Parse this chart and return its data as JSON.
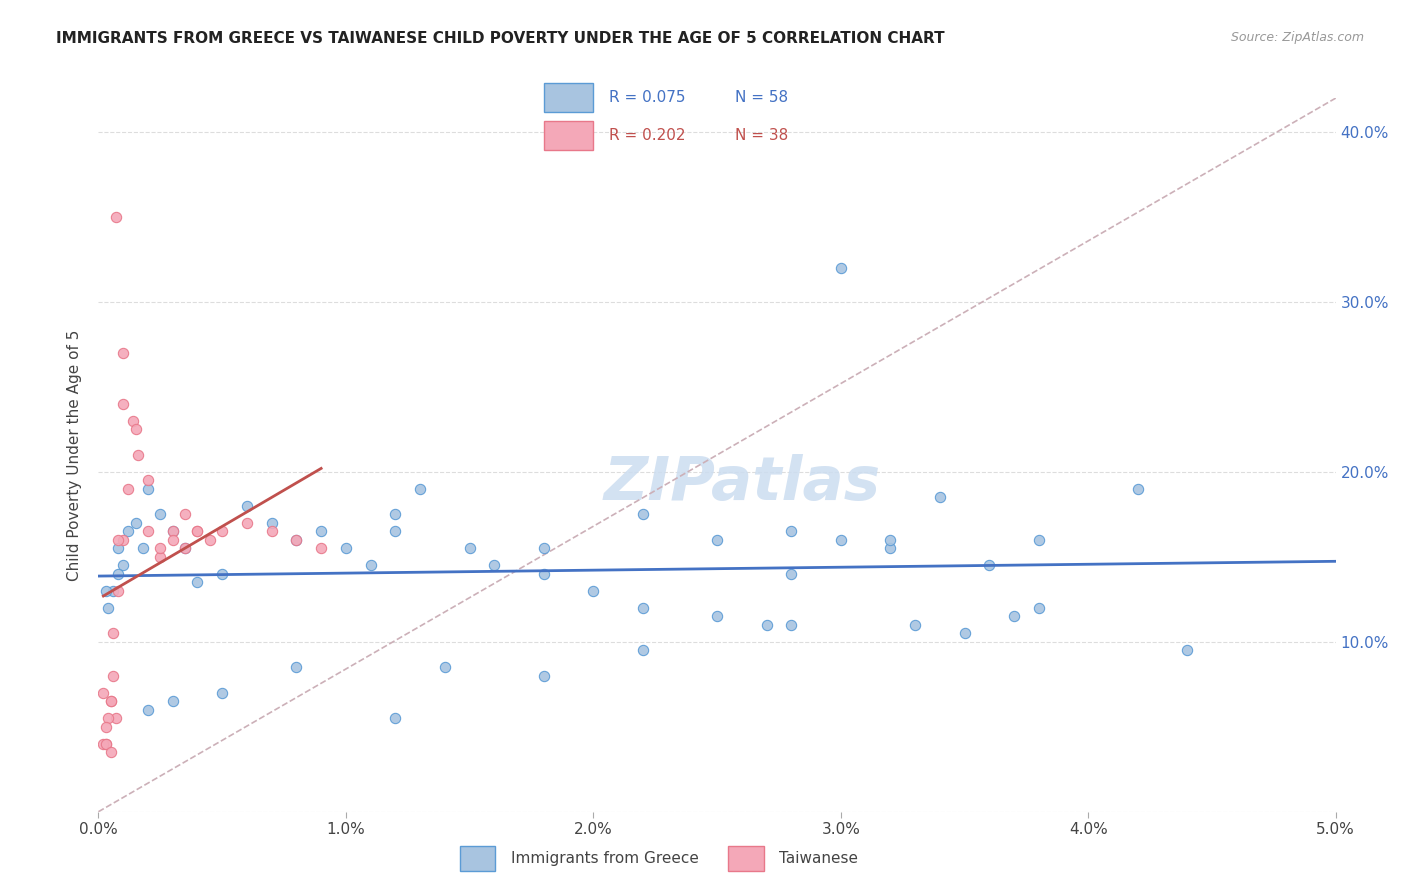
{
  "title": "IMMIGRANTS FROM GREECE VS TAIWANESE CHILD POVERTY UNDER THE AGE OF 5 CORRELATION CHART",
  "source": "Source: ZipAtlas.com",
  "ylabel": "Child Poverty Under the Age of 5",
  "xlim": [
    0.0,
    0.05
  ],
  "ylim": [
    0.0,
    0.42
  ],
  "xtick_vals": [
    0.0,
    0.01,
    0.02,
    0.03,
    0.04,
    0.05
  ],
  "xtick_labels": [
    "0.0%",
    "1.0%",
    "2.0%",
    "3.0%",
    "4.0%",
    "5.0%"
  ],
  "ytick_vals": [
    0.0,
    0.1,
    0.2,
    0.3,
    0.4
  ],
  "ytick_labels": [
    "",
    "10.0%",
    "20.0%",
    "30.0%",
    "40.0%"
  ],
  "greece_color": "#a8c4e0",
  "taiwan_color": "#f4a8b8",
  "greece_edge_color": "#5b9bd5",
  "taiwan_edge_color": "#e8788a",
  "trend_greece_color": "#4472c4",
  "trend_taiwan_color": "#c0504d",
  "diagonal_color": "#ccb0b8",
  "R_greece": 0.075,
  "N_greece": 58,
  "R_taiwan": 0.202,
  "N_taiwan": 38,
  "greece_x": [
    0.0008,
    0.001,
    0.0012,
    0.0015,
    0.0008,
    0.0006,
    0.0004,
    0.0003,
    0.0018,
    0.002,
    0.0025,
    0.003,
    0.0035,
    0.004,
    0.005,
    0.006,
    0.007,
    0.008,
    0.009,
    0.01,
    0.011,
    0.012,
    0.013,
    0.015,
    0.016,
    0.018,
    0.02,
    0.022,
    0.025,
    0.027,
    0.025,
    0.028,
    0.03,
    0.032,
    0.033,
    0.035,
    0.037,
    0.038,
    0.034,
    0.036,
    0.028,
    0.022,
    0.018,
    0.014,
    0.012,
    0.008,
    0.005,
    0.003,
    0.002,
    0.042,
    0.044,
    0.038,
    0.032,
    0.03,
    0.028,
    0.022,
    0.018,
    0.012
  ],
  "greece_y": [
    0.155,
    0.145,
    0.165,
    0.17,
    0.14,
    0.13,
    0.12,
    0.13,
    0.155,
    0.19,
    0.175,
    0.165,
    0.155,
    0.135,
    0.14,
    0.18,
    0.17,
    0.16,
    0.165,
    0.155,
    0.145,
    0.165,
    0.19,
    0.155,
    0.145,
    0.14,
    0.13,
    0.12,
    0.115,
    0.11,
    0.16,
    0.165,
    0.16,
    0.155,
    0.11,
    0.105,
    0.115,
    0.16,
    0.185,
    0.145,
    0.11,
    0.175,
    0.155,
    0.085,
    0.175,
    0.085,
    0.07,
    0.065,
    0.06,
    0.19,
    0.095,
    0.12,
    0.16,
    0.32,
    0.14,
    0.095,
    0.08,
    0.055
  ],
  "taiwan_x": [
    0.0003,
    0.0005,
    0.0006,
    0.0007,
    0.0008,
    0.001,
    0.0012,
    0.0014,
    0.0016,
    0.002,
    0.0025,
    0.003,
    0.0035,
    0.004,
    0.005,
    0.006,
    0.007,
    0.008,
    0.009,
    0.0045,
    0.004,
    0.0035,
    0.003,
    0.0025,
    0.002,
    0.0015,
    0.001,
    0.0008,
    0.0006,
    0.0005,
    0.0004,
    0.0003,
    0.0002,
    0.0002,
    0.0003,
    0.0005,
    0.0007,
    0.001
  ],
  "taiwan_y": [
    0.04,
    0.065,
    0.08,
    0.055,
    0.13,
    0.16,
    0.19,
    0.23,
    0.21,
    0.195,
    0.15,
    0.165,
    0.155,
    0.165,
    0.165,
    0.17,
    0.165,
    0.16,
    0.155,
    0.16,
    0.165,
    0.175,
    0.16,
    0.155,
    0.165,
    0.225,
    0.27,
    0.16,
    0.105,
    0.065,
    0.055,
    0.05,
    0.07,
    0.04,
    0.04,
    0.035,
    0.35,
    0.24
  ]
}
